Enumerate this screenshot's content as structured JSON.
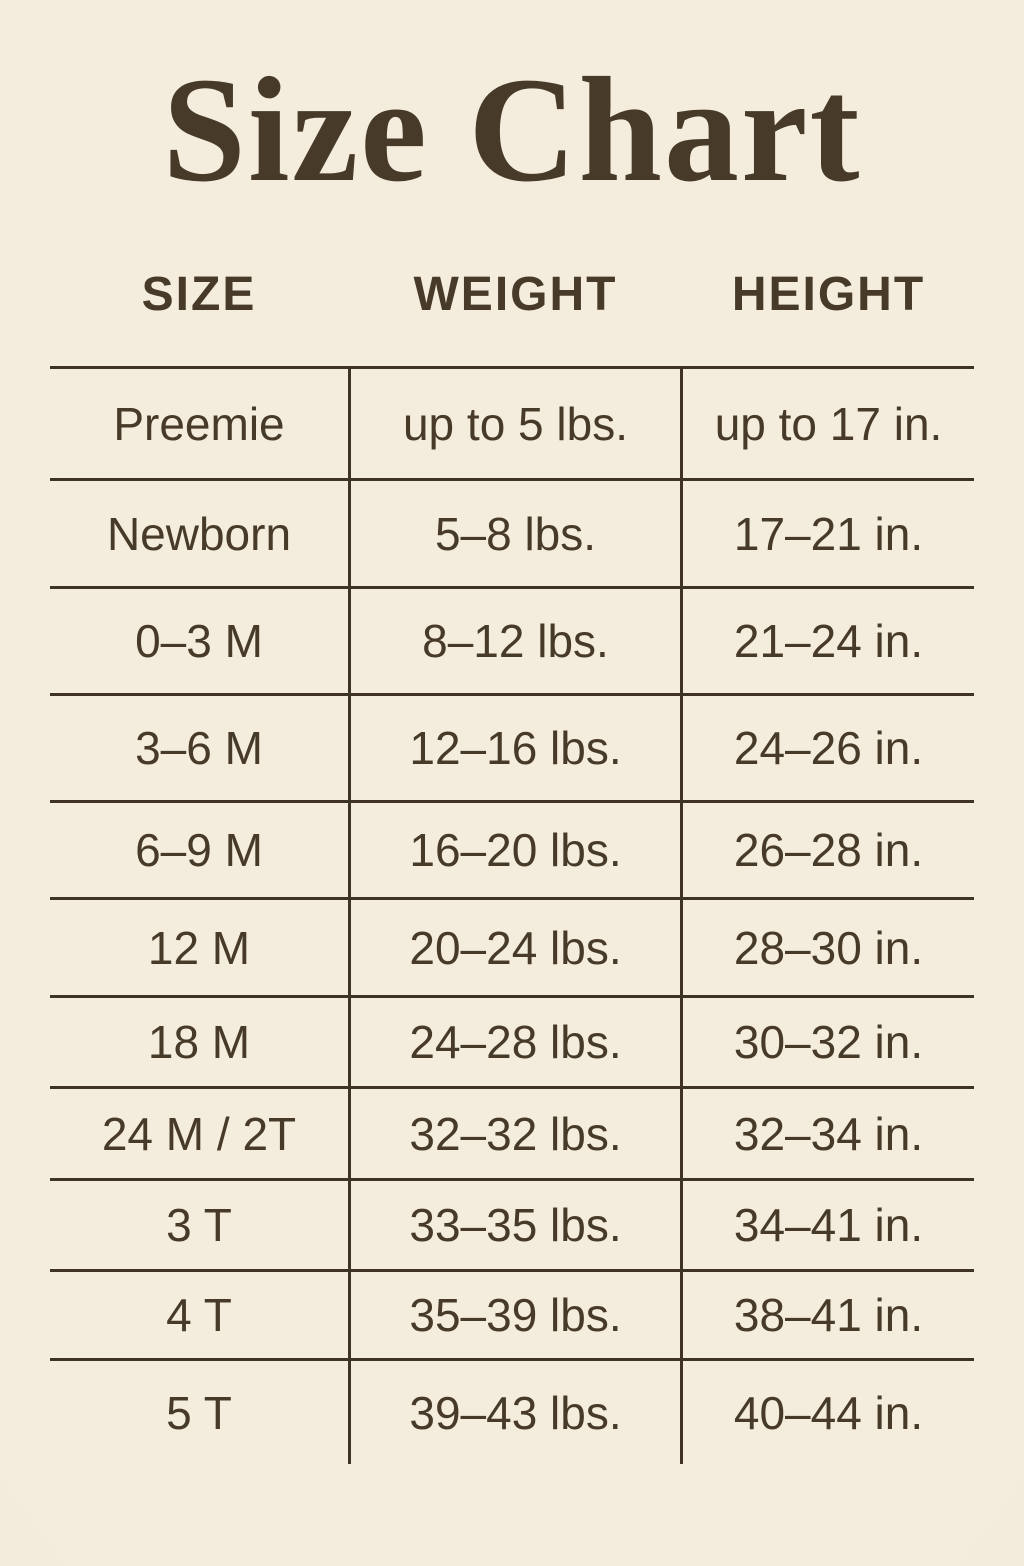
{
  "title": "Size Chart",
  "colors": {
    "background": "#f2ead9",
    "text": "#473a28",
    "line": "#3e3324"
  },
  "chart_data": {
    "type": "table",
    "title": "Size Chart",
    "columns": [
      "SIZE",
      "WEIGHT",
      "HEIGHT"
    ],
    "rows": [
      [
        "Preemie",
        "up to 5 lbs.",
        "up to 17 in."
      ],
      [
        "Newborn",
        "5–8 lbs.",
        "17–21 in."
      ],
      [
        "0–3 M",
        "8–12 lbs.",
        "21–24 in."
      ],
      [
        "3–6 M",
        "12–16 lbs.",
        "24–26 in."
      ],
      [
        "6–9 M",
        "16–20 lbs.",
        "26–28 in."
      ],
      [
        "12 M",
        "20–24 lbs.",
        "28–30 in."
      ],
      [
        "18 M",
        "24–28 lbs.",
        "30–32 in."
      ],
      [
        "24 M / 2T",
        "32–32 lbs.",
        "32–34 in."
      ],
      [
        "3 T",
        "33–35 lbs.",
        "34–41 in."
      ],
      [
        "4 T",
        "35–39 lbs.",
        "38–41 in."
      ],
      [
        "5 T",
        "39–43 lbs.",
        "40–44 in."
      ]
    ]
  }
}
